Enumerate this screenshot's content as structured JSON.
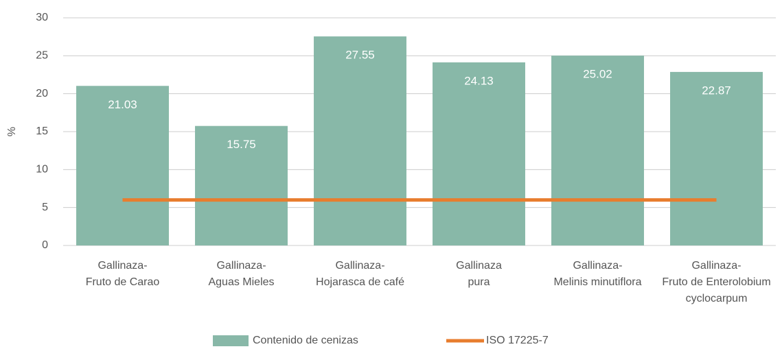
{
  "chart_data": {
    "type": "bar",
    "y_label": "%",
    "categories": [
      [
        "Gallinaza-",
        "Fruto de Carao"
      ],
      [
        "Gallinaza-",
        "Aguas Mieles"
      ],
      [
        "Gallinaza-",
        "Hojarasca de café"
      ],
      [
        "Gallinaza",
        "pura"
      ],
      [
        "Gallinaza-",
        "Melinis minutiflora"
      ],
      [
        "Gallinaza-",
        "Fruto de Enterolobium",
        "cyclocarpum"
      ]
    ],
    "series": [
      {
        "name": "Contenido de cenizas",
        "type": "bar",
        "color": "#88b8a8",
        "values": [
          21.03,
          15.75,
          27.55,
          24.13,
          25.02,
          22.87
        ]
      },
      {
        "name": "ISO 17225-7",
        "type": "line",
        "color": "#e87d2e",
        "values": [
          6,
          6,
          6,
          6,
          6,
          6
        ]
      }
    ],
    "ylim": [
      0,
      30
    ],
    "yticks": [
      0,
      5,
      10,
      15,
      20,
      25,
      30
    ],
    "grid": true,
    "legend": "bottom"
  }
}
